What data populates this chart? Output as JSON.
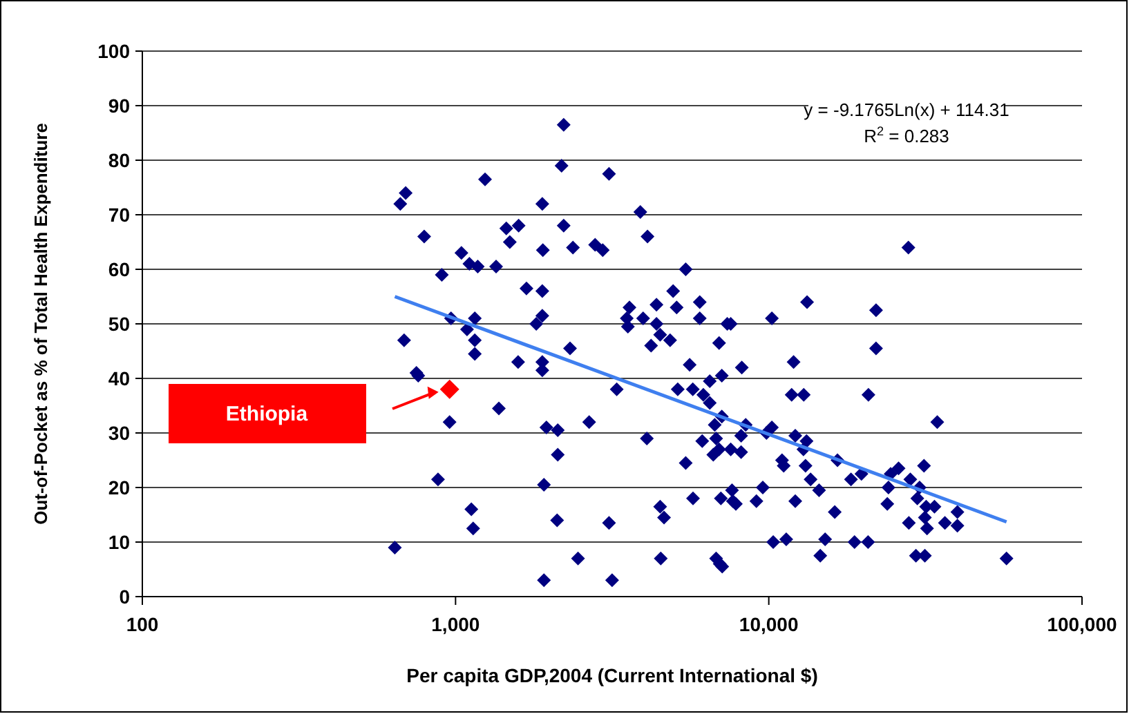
{
  "chart_data": {
    "type": "scatter",
    "xlabel": "Per capita GDP,2004 (Current International $)",
    "ylabel": "Out-of-Pocket as % of Total Health Expenditure",
    "log": "x",
    "grid": "y",
    "marker": "diamond",
    "xlim": [
      100,
      100000
    ],
    "xticks": [
      100,
      {
        "value": 1000,
        "label": "1,000"
      },
      {
        "value": 10000,
        "label": "10,000"
      },
      {
        "value": 100000,
        "label": "100,000"
      }
    ],
    "ylim": [
      0,
      100
    ],
    "yticks": [
      0,
      10,
      20,
      30,
      40,
      50,
      60,
      70,
      80,
      90,
      100
    ],
    "annotations": [
      "y = -9.1765Ln(x) + 114.31",
      "R$^{2}$ = 0.283",
      "Ethiopia"
    ],
    "series": [
      {
        "color": "#000080",
        "x": [
          2214,
          2180,
          3090,
          1242,
          693,
          666,
          1892,
          3890,
          2214,
          4100,
          794,
          1452,
          1590,
          1490,
          1900,
          2370,
          2790,
          2950,
          1044,
          1107,
          1177,
          1347,
          904,
          1684,
          1892,
          967,
          1152,
          1892,
          1810,
          1088,
          1152,
          685,
          1152,
          2320,
          1584,
          1892,
          1892,
          750,
          760,
          3270,
          1375,
          957,
          2670,
          1950,
          2120,
          4080,
          2120,
          879,
          1915,
          1123,
          1138,
          2110,
          3090,
          640,
          2460,
          1915,
          3160,
          5430,
          4950,
          4380,
          3590,
          3520,
          3550,
          3970,
          4380,
          4500,
          4840,
          4210,
          5080,
          6020,
          6020,
          7370,
          7560,
          10230,
          13250,
          22000,
          22000,
          6940,
          5590,
          8200,
          7080,
          6480,
          12000,
          5120,
          5720,
          6180,
          6480,
          11830,
          12930,
          20800,
          6720,
          7080,
          8440,
          8160,
          6790,
          6130,
          6650,
          6940,
          7560,
          8160,
          5430,
          9830,
          10230,
          12150,
          13200,
          12900,
          11020,
          11160,
          13100,
          16570,
          19760,
          18300,
          13600,
          14470,
          9570,
          7630,
          7680,
          7850,
          7030,
          5730,
          9130,
          12150,
          16240,
          4500,
          4630,
          10330,
          11370,
          15130,
          18780,
          20750,
          14600,
          4520,
          6790,
          6970,
          7100,
          27900,
          34500,
          24500,
          25960,
          31300,
          28300,
          24100,
          30300,
          29800,
          33800,
          31800,
          40000,
          23900,
          31500,
          28000,
          32000,
          36500,
          40000,
          29500,
          31500,
          57400
        ],
        "values": [
          86.5,
          79,
          77.5,
          76.5,
          74,
          72,
          72,
          70.5,
          68,
          66,
          66,
          67.5,
          68,
          65,
          63.5,
          64,
          64.5,
          63.5,
          63,
          61,
          60.5,
          60.5,
          59,
          56.5,
          56,
          51,
          51,
          51.5,
          50,
          49,
          47,
          47,
          44.5,
          45.5,
          43,
          43,
          41.5,
          41,
          40.5,
          38,
          34.5,
          32,
          32,
          31,
          30.5,
          29,
          26,
          21.5,
          20.5,
          16,
          12.5,
          14,
          13.5,
          9,
          7,
          3,
          3,
          60,
          56,
          53.5,
          53,
          51,
          49.5,
          51,
          50,
          48,
          47,
          46,
          53,
          54,
          51,
          50,
          50,
          51,
          54,
          52.5,
          45.5,
          46.5,
          42.5,
          42,
          40.5,
          39.5,
          43,
          38,
          38,
          37,
          35.5,
          37,
          37,
          37,
          31.5,
          33,
          31.5,
          29.5,
          29,
          28.5,
          26,
          27,
          27,
          26.5,
          24.5,
          30,
          31,
          29.5,
          28.5,
          27,
          25,
          24,
          24,
          25,
          22.5,
          21.5,
          21.5,
          19.5,
          20,
          19.5,
          17.5,
          17,
          18,
          18,
          17.5,
          17.5,
          15.5,
          16.5,
          14.5,
          10,
          10.5,
          10.5,
          10,
          10,
          7.5,
          7,
          7,
          6,
          5.5,
          64,
          32,
          22.5,
          23.5,
          24,
          21.5,
          20,
          20,
          18,
          16.5,
          16.5,
          15.5,
          17,
          14.5,
          13.5,
          12.5,
          13.5,
          13,
          7.5,
          7.5,
          7
        ]
      },
      {
        "color": "#ff0000",
        "x": [
          957
        ],
        "values": [
          38
        ]
      },
      {
        "type": "line",
        "color": "#3f7fef",
        "marker": "none",
        "x": [
          640,
          57400
        ],
        "values": [
          55.0,
          13.7
        ]
      }
    ]
  }
}
